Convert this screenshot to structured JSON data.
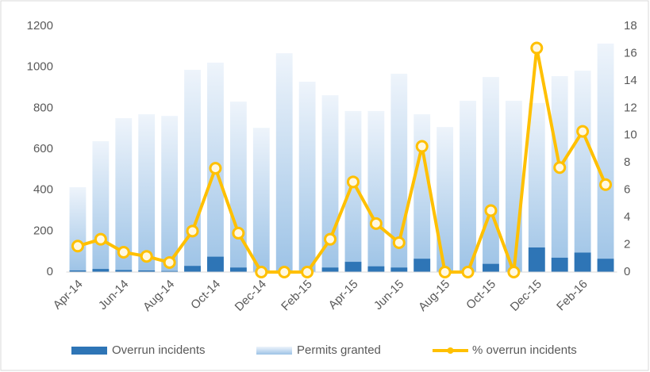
{
  "chart_data": {
    "type": "bar_line",
    "categories": [
      "Apr-14",
      null,
      "Jun-14",
      null,
      "Aug-14",
      null,
      "Oct-14",
      null,
      "Dec-14",
      null,
      "Feb-15",
      null,
      "Apr-15",
      null,
      "Jun-15",
      null,
      "Aug-15",
      null,
      "Oct-15",
      null,
      "Dec-15",
      null,
      "Feb-16",
      null
    ],
    "series": [
      {
        "name": "Overrun incidents",
        "color": "#2e75b6",
        "type": "bar",
        "values": [
          8,
          15,
          10,
          8,
          5,
          30,
          75,
          22,
          0,
          0,
          0,
          22,
          50,
          28,
          22,
          65,
          0,
          0,
          40,
          0,
          120,
          70,
          95,
          65
        ]
      },
      {
        "name": "Permits granted",
        "color": "#9dc3e6",
        "type": "bar",
        "values": [
          414,
          639,
          751,
          770,
          762,
          987,
          1022,
          832,
          704,
          1068,
          929,
          863,
          786,
          786,
          968,
          770,
          708,
          836,
          952,
          836,
          825,
          956,
          983,
          1115
        ]
      },
      {
        "name": "% overrun incidents",
        "color": "#ffc000",
        "type": "line",
        "axis": "y2",
        "values": [
          1.9,
          2.4,
          1.45,
          1.15,
          0.7,
          3.0,
          7.6,
          2.85,
          0,
          0,
          0,
          2.4,
          6.6,
          3.55,
          2.15,
          9.2,
          0,
          0,
          4.5,
          0,
          16.4,
          7.65,
          10.3,
          6.4
        ]
      }
    ],
    "ylim": [
      0,
      1200
    ],
    "yticks": [
      0,
      200,
      400,
      600,
      800,
      1000,
      1200
    ],
    "y2lim": [
      0,
      18
    ],
    "y2ticks": [
      0,
      2,
      4,
      6,
      8,
      10,
      12,
      14,
      16,
      18
    ],
    "legend": "bottom"
  }
}
